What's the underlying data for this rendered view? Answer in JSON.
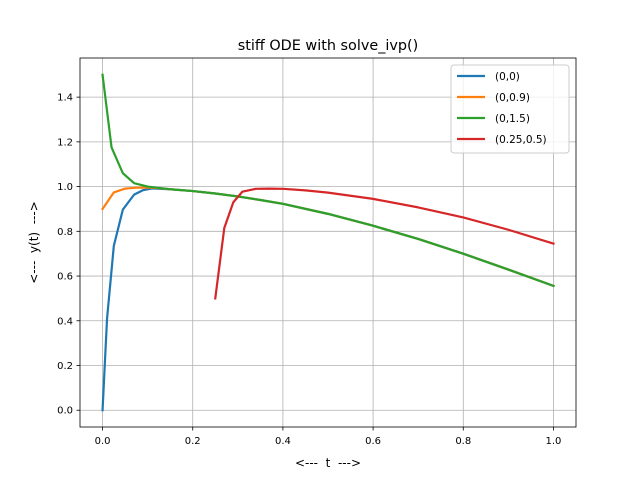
{
  "chart_data": {
    "type": "line",
    "title": "stiff ODE with solve_ivp()",
    "xlabel": "<---  t  --->",
    "ylabel": "<---  y(t)  --->",
    "xlim": [
      -0.05,
      1.05
    ],
    "ylim": [
      -0.075,
      1.575
    ],
    "xticks": [
      0.0,
      0.2,
      0.4,
      0.6,
      0.8,
      1.0
    ],
    "xtick_labels": [
      "0.0",
      "0.2",
      "0.4",
      "0.6",
      "0.8",
      "1.0"
    ],
    "yticks": [
      0.0,
      0.2,
      0.4,
      0.6,
      0.8,
      1.0,
      1.2,
      1.4
    ],
    "ytick_labels": [
      "0.0",
      "0.2",
      "0.4",
      "0.6",
      "0.8",
      "1.0",
      "1.2",
      "1.4"
    ],
    "grid": true,
    "legend_position": "top-right",
    "series": [
      {
        "name": "(0,0)",
        "color": "#1f77b4",
        "x": [
          0.0,
          0.01,
          0.025,
          0.045,
          0.07,
          0.09,
          0.11,
          0.15,
          0.2,
          0.25,
          0.3,
          0.35,
          0.4,
          0.5,
          0.6,
          0.7,
          0.8,
          0.9,
          1.0
        ],
        "y": [
          0.0,
          0.41,
          0.735,
          0.897,
          0.964,
          0.984,
          0.992,
          0.988,
          0.98,
          0.969,
          0.956,
          0.94,
          0.923,
          0.878,
          0.825,
          0.766,
          0.7,
          0.629,
          0.556
        ]
      },
      {
        "name": "(0,0.9)",
        "color": "#ff7f0e",
        "x": [
          0.0,
          0.025,
          0.05,
          0.075,
          0.1,
          0.12,
          0.15,
          0.2,
          0.25,
          0.3,
          0.35,
          0.4,
          0.5,
          0.6,
          0.7,
          0.8,
          0.9,
          1.0
        ],
        "y": [
          0.9,
          0.974,
          0.991,
          0.995,
          0.996,
          0.994,
          0.988,
          0.98,
          0.969,
          0.956,
          0.94,
          0.923,
          0.878,
          0.825,
          0.766,
          0.7,
          0.629,
          0.556
        ]
      },
      {
        "name": "(0,1.5)",
        "color": "#2ca02c",
        "x": [
          0.0,
          0.02,
          0.045,
          0.07,
          0.1,
          0.13,
          0.15,
          0.2,
          0.25,
          0.3,
          0.35,
          0.4,
          0.5,
          0.6,
          0.7,
          0.8,
          0.9,
          1.0
        ],
        "y": [
          1.5,
          1.175,
          1.06,
          1.015,
          1.0,
          0.993,
          0.988,
          0.98,
          0.969,
          0.956,
          0.94,
          0.923,
          0.878,
          0.825,
          0.766,
          0.7,
          0.629,
          0.556
        ]
      },
      {
        "name": "(0.25,0.5)",
        "color": "#d62728",
        "x": [
          0.25,
          0.27,
          0.29,
          0.31,
          0.34,
          0.37,
          0.4,
          0.45,
          0.5,
          0.6,
          0.7,
          0.8,
          0.9,
          1.0
        ],
        "y": [
          0.5,
          0.815,
          0.93,
          0.977,
          0.99,
          0.991,
          0.99,
          0.983,
          0.973,
          0.945,
          0.907,
          0.862,
          0.807,
          0.745
        ]
      }
    ]
  }
}
